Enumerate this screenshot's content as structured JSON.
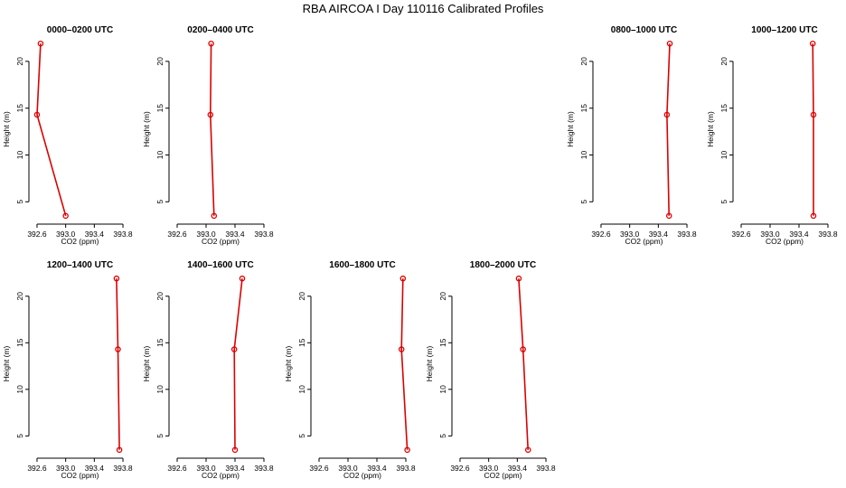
{
  "figure": {
    "suptitle": "RBA AIRCOA I  Day 110116  Calibrated Profiles"
  },
  "colors": {
    "line": "#dd0000",
    "axis": "#000000",
    "background": "#ffffff"
  },
  "chart_data": [
    {
      "type": "line",
      "title": "0000–0200 UTC",
      "xlabel": "CO2 (ppm)",
      "ylabel": "Height (m)",
      "xlim": [
        392.55,
        393.85
      ],
      "ylim": [
        3,
        22.5
      ],
      "xticks": [
        392.6,
        393.0,
        393.4,
        393.8
      ],
      "xticklabels": [
        "392.6",
        "393.0",
        "393.4",
        "393.8"
      ],
      "yticks": [
        5,
        10,
        15,
        20
      ],
      "yticklabels": [
        "5",
        "10",
        "15",
        "20"
      ],
      "series": [
        {
          "x": [
            393.0,
            392.6,
            392.65
          ],
          "y": [
            3.5,
            14.3,
            21.9
          ]
        }
      ]
    },
    {
      "type": "line",
      "title": "0200–0400 UTC",
      "xlabel": "CO2 (ppm)",
      "ylabel": "Height (m)",
      "xlim": [
        392.55,
        393.85
      ],
      "ylim": [
        3,
        22.5
      ],
      "xticks": [
        392.6,
        393.0,
        393.4,
        393.8
      ],
      "xticklabels": [
        "392.6",
        "393.0",
        "393.4",
        "393.8"
      ],
      "yticks": [
        5,
        10,
        15,
        20
      ],
      "yticklabels": [
        "5",
        "10",
        "15",
        "20"
      ],
      "series": [
        {
          "x": [
            393.11,
            393.06,
            393.07
          ],
          "y": [
            3.5,
            14.3,
            21.9
          ]
        }
      ]
    },
    {
      "type": "line",
      "title": "0800–1000 UTC",
      "xlabel": "CO2 (ppm)",
      "ylabel": "Height (m)",
      "xlim": [
        392.55,
        393.85
      ],
      "ylim": [
        3,
        22.5
      ],
      "xticks": [
        392.6,
        393.0,
        393.4,
        393.8
      ],
      "xticklabels": [
        "392.6",
        "393.0",
        "393.4",
        "393.8"
      ],
      "yticks": [
        5,
        10,
        15,
        20
      ],
      "yticklabels": [
        "5",
        "10",
        "15",
        "20"
      ],
      "series": [
        {
          "x": [
            393.55,
            393.52,
            393.56
          ],
          "y": [
            3.5,
            14.3,
            21.9
          ]
        }
      ]
    },
    {
      "type": "line",
      "title": "1000–1200 UTC",
      "xlabel": "CO2 (ppm)",
      "ylabel": "Height (m)",
      "xlim": [
        392.55,
        393.85
      ],
      "ylim": [
        3,
        22.5
      ],
      "xticks": [
        392.6,
        393.0,
        393.4,
        393.8
      ],
      "xticklabels": [
        "392.6",
        "393.0",
        "393.4",
        "393.8"
      ],
      "yticks": [
        5,
        10,
        15,
        20
      ],
      "yticklabels": [
        "5",
        "10",
        "15",
        "20"
      ],
      "series": [
        {
          "x": [
            393.6,
            393.6,
            393.59
          ],
          "y": [
            3.5,
            14.3,
            21.9
          ]
        }
      ]
    },
    {
      "type": "line",
      "title": "1200–1400 UTC",
      "xlabel": "CO2 (ppm)",
      "ylabel": "Height (m)",
      "xlim": [
        392.55,
        393.85
      ],
      "ylim": [
        3,
        22.5
      ],
      "xticks": [
        392.6,
        393.0,
        393.4,
        393.8
      ],
      "xticklabels": [
        "392.6",
        "393.0",
        "393.4",
        "393.8"
      ],
      "yticks": [
        5,
        10,
        15,
        20
      ],
      "yticklabels": [
        "5",
        "10",
        "15",
        "20"
      ],
      "series": [
        {
          "x": [
            393.75,
            393.73,
            393.71
          ],
          "y": [
            3.5,
            14.3,
            21.9
          ]
        }
      ]
    },
    {
      "type": "line",
      "title": "1400–1600 UTC",
      "xlabel": "CO2 (ppm)",
      "ylabel": "Height (m)",
      "xlim": [
        392.55,
        393.85
      ],
      "ylim": [
        3,
        22.5
      ],
      "xticks": [
        392.6,
        393.0,
        393.4,
        393.8
      ],
      "xticklabels": [
        "392.6",
        "393.0",
        "393.4",
        "393.8"
      ],
      "yticks": [
        5,
        10,
        15,
        20
      ],
      "yticklabels": [
        "5",
        "10",
        "15",
        "20"
      ],
      "series": [
        {
          "x": [
            393.4,
            393.39,
            393.5
          ],
          "y": [
            3.5,
            14.3,
            21.9
          ]
        }
      ]
    },
    {
      "type": "line",
      "title": "1600–1800 UTC",
      "xlabel": "CO2 (ppm)",
      "ylabel": "Height (m)",
      "xlim": [
        392.55,
        393.85
      ],
      "ylim": [
        3,
        22.5
      ],
      "xticks": [
        392.6,
        393.0,
        393.4,
        393.8
      ],
      "xticklabels": [
        "392.6",
        "393.0",
        "393.4",
        "393.8"
      ],
      "yticks": [
        5,
        10,
        15,
        20
      ],
      "yticklabels": [
        "5",
        "10",
        "15",
        "20"
      ],
      "series": [
        {
          "x": [
            393.82,
            393.74,
            393.76
          ],
          "y": [
            3.5,
            14.3,
            21.9
          ]
        }
      ]
    },
    {
      "type": "line",
      "title": "1800–2000 UTC",
      "xlabel": "CO2 (ppm)",
      "ylabel": "Height (m)",
      "xlim": [
        392.55,
        393.85
      ],
      "ylim": [
        3,
        22.5
      ],
      "xticks": [
        392.6,
        393.0,
        393.4,
        393.8
      ],
      "xticklabels": [
        "392.6",
        "393.0",
        "393.4",
        "393.8"
      ],
      "yticks": [
        5,
        10,
        15,
        20
      ],
      "yticklabels": [
        "5",
        "10",
        "15",
        "20"
      ],
      "series": [
        {
          "x": [
            393.55,
            393.48,
            393.42
          ],
          "y": [
            3.5,
            14.3,
            21.9
          ]
        }
      ]
    }
  ]
}
